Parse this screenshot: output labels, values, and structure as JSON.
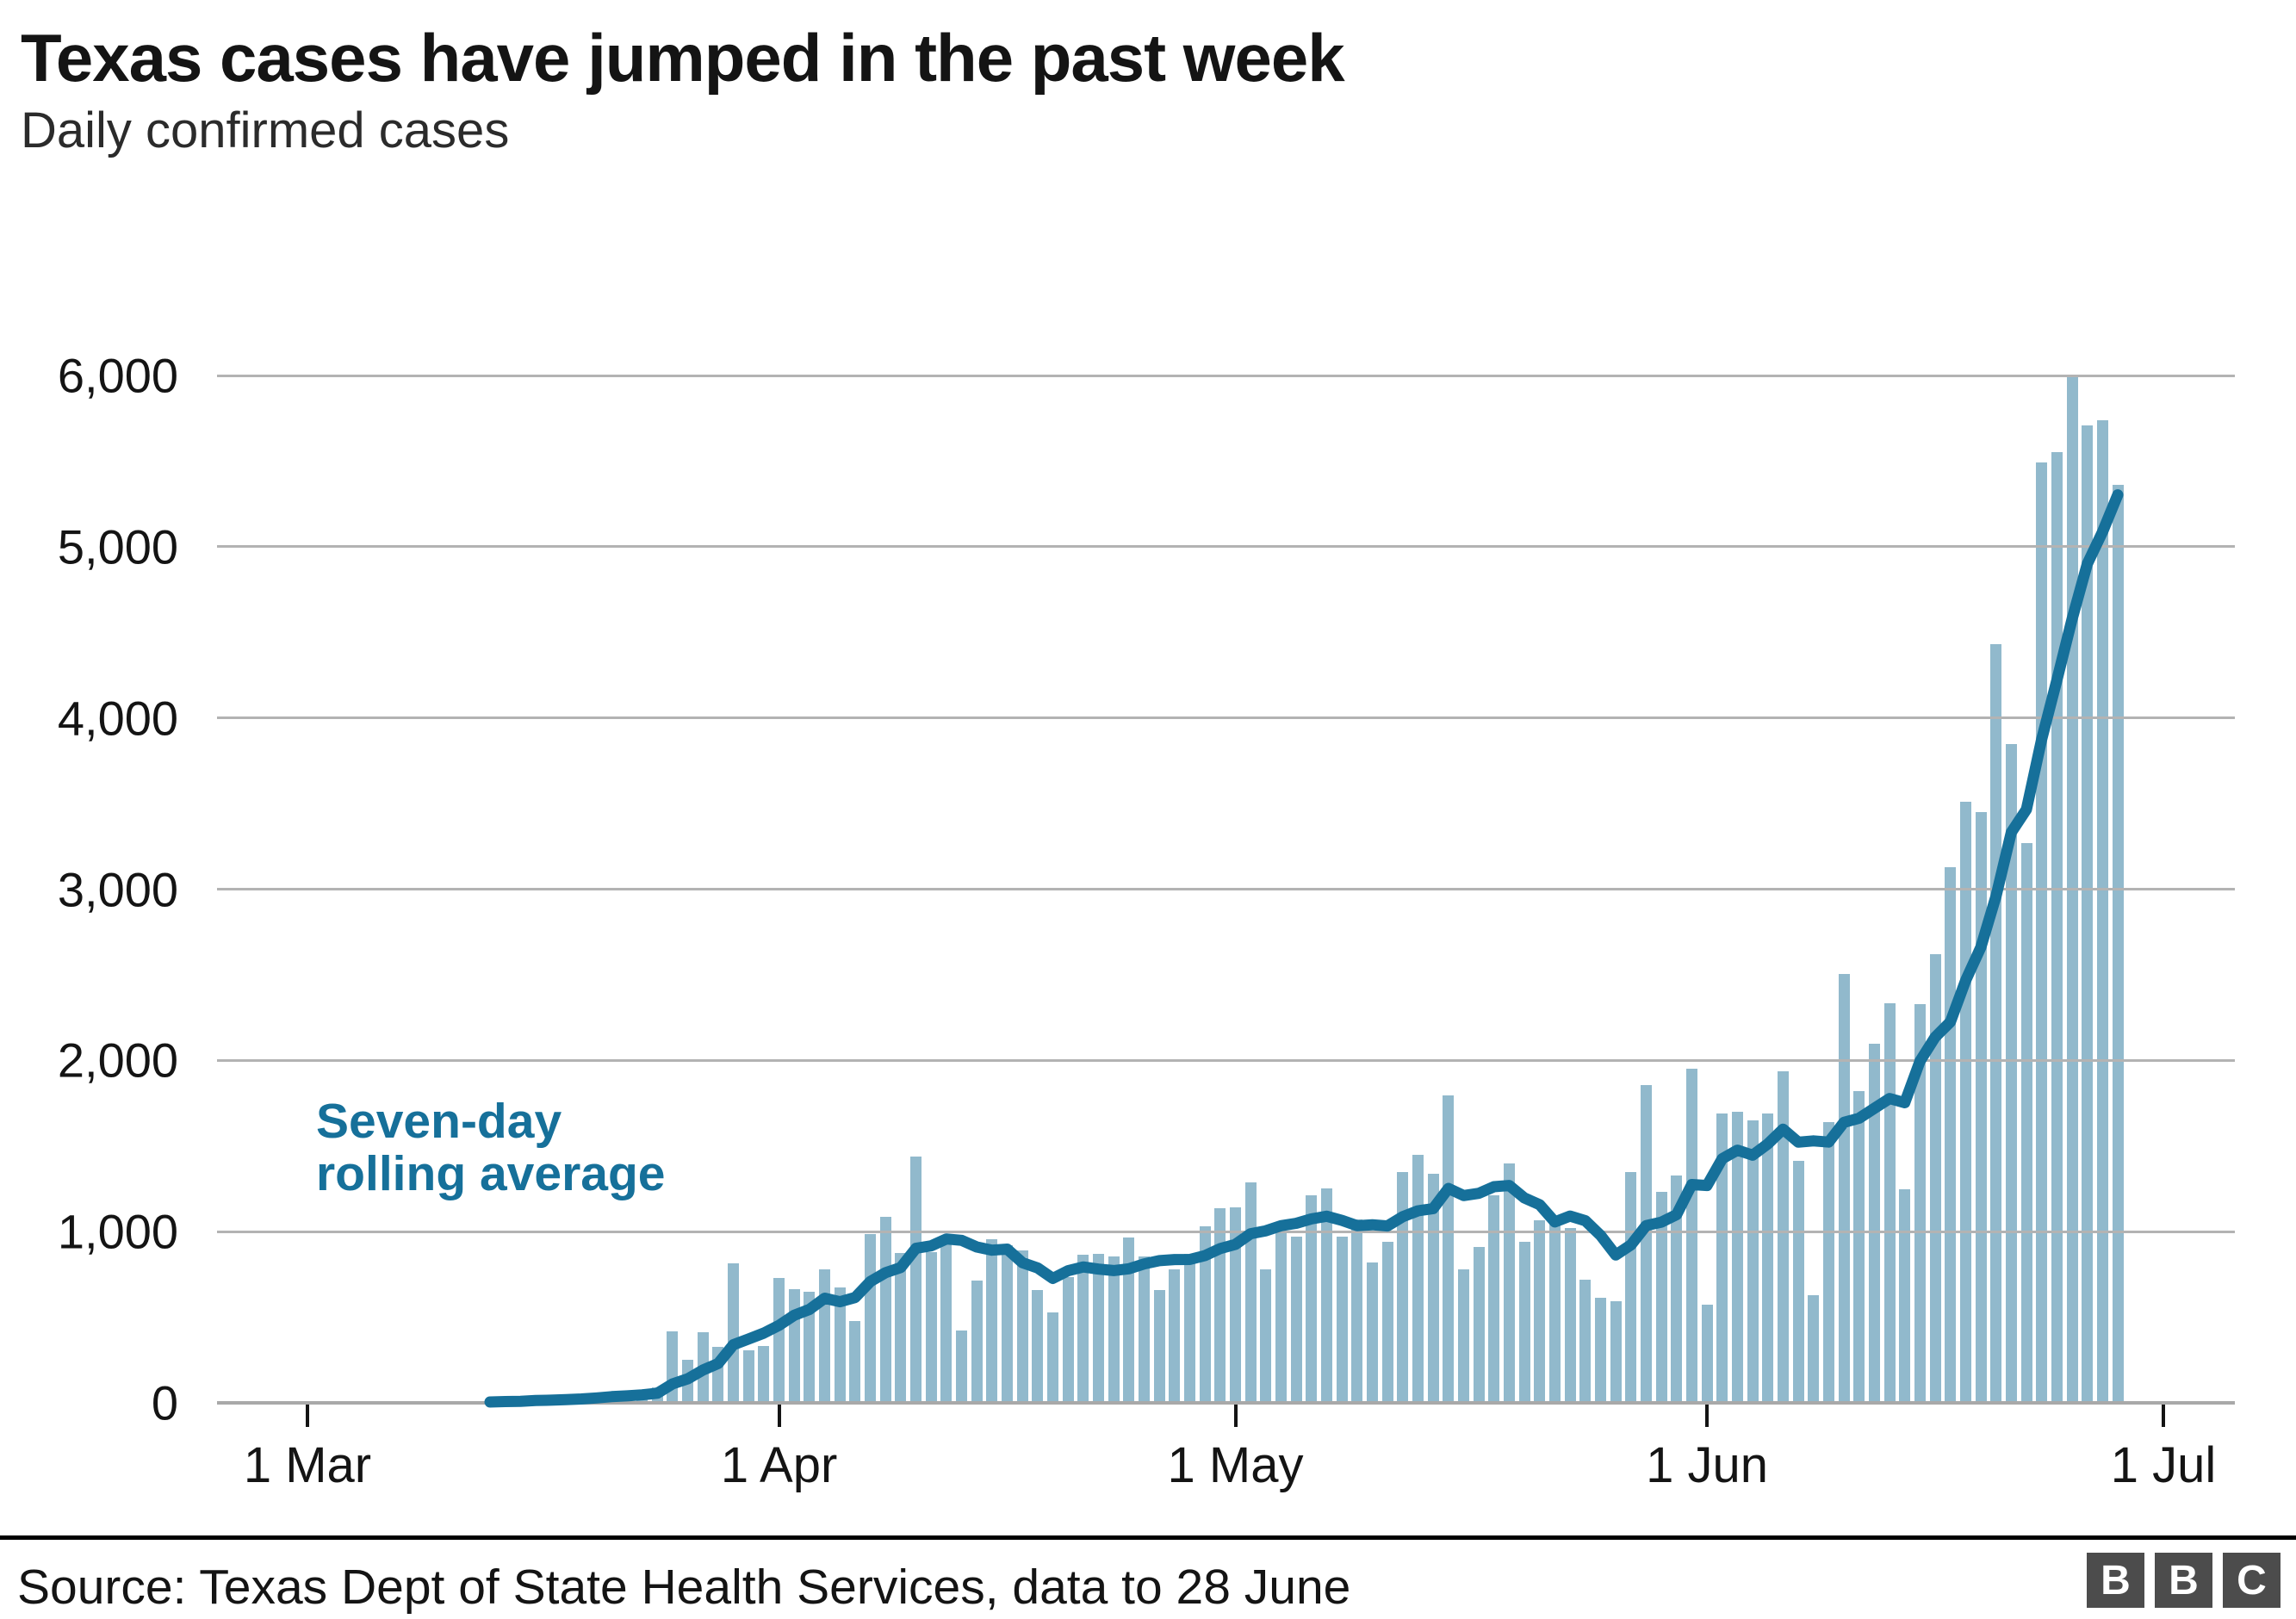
{
  "header": {
    "title": "Texas cases have jumped in the past week",
    "subtitle": "Daily confirmed cases"
  },
  "annotation": {
    "line1": "Seven-day",
    "line2": "rolling average"
  },
  "footer": {
    "source": "Source: Texas Dept of State Health Services, data to 28 June",
    "logo_letters": [
      "B",
      "B",
      "C"
    ]
  },
  "colors": {
    "bar": "#91b9cc",
    "line": "#16709a",
    "grid": "#b3b3b3",
    "axis": "#a9a9a9",
    "text": "#141414",
    "logo_bg": "#4c4c4c"
  },
  "chart_data": {
    "type": "bar",
    "title": "Texas cases have jumped in the past week",
    "subtitle": "Daily confirmed cases",
    "xlabel": "",
    "ylabel": "",
    "ylim": [
      0,
      6000
    ],
    "grid": "horizontal",
    "legend": "inline annotation only",
    "y_ticks": [
      {
        "label": "0",
        "value": 0
      },
      {
        "label": "1,000",
        "value": 1000
      },
      {
        "label": "2,000",
        "value": 2000
      },
      {
        "label": "3,000",
        "value": 3000
      },
      {
        "label": "4,000",
        "value": 4000
      },
      {
        "label": "5,000",
        "value": 5000
      },
      {
        "label": "6,000",
        "value": 6000
      }
    ],
    "x_ticks": [
      {
        "label": "1 Mar",
        "day_offset": 0
      },
      {
        "label": "1 Apr",
        "day_offset": 31
      },
      {
        "label": "1 May",
        "day_offset": 61
      },
      {
        "label": "1 Jun",
        "day_offset": 92
      },
      {
        "label": "1 Jul",
        "day_offset": 122
      }
    ],
    "start_day_offset": 12,
    "series": [
      {
        "name": "Daily confirmed cases",
        "type": "bar"
      },
      {
        "name": "Seven-day rolling average",
        "type": "line",
        "derivation": "trailing 7-day mean of daily values"
      }
    ],
    "categories": [
      "13 Mar",
      "14 Mar",
      "15 Mar",
      "16 Mar",
      "17 Mar",
      "18 Mar",
      "19 Mar",
      "20 Mar",
      "21 Mar",
      "22 Mar",
      "23 Mar",
      "24 Mar",
      "25 Mar",
      "26 Mar",
      "27 Mar",
      "28 Mar",
      "29 Mar",
      "30 Mar",
      "31 Mar",
      "1 Apr",
      "2 Apr",
      "3 Apr",
      "4 Apr",
      "5 Apr",
      "6 Apr",
      "7 Apr",
      "8 Apr",
      "9 Apr",
      "10 Apr",
      "11 Apr",
      "12 Apr",
      "13 Apr",
      "14 Apr",
      "15 Apr",
      "16 Apr",
      "17 Apr",
      "18 Apr",
      "19 Apr",
      "20 Apr",
      "21 Apr",
      "22 Apr",
      "23 Apr",
      "24 Apr",
      "25 Apr",
      "26 Apr",
      "27 Apr",
      "28 Apr",
      "29 Apr",
      "30 Apr",
      "1 May",
      "2 May",
      "3 May",
      "4 May",
      "5 May",
      "6 May",
      "7 May",
      "8 May",
      "9 May",
      "10 May",
      "11 May",
      "12 May",
      "13 May",
      "14 May",
      "15 May",
      "16 May",
      "17 May",
      "18 May",
      "19 May",
      "20 May",
      "21 May",
      "22 May",
      "23 May",
      "24 May",
      "25 May",
      "26 May",
      "27 May",
      "28 May",
      "29 May",
      "30 May",
      "31 May",
      "1 Jun",
      "2 Jun",
      "3 Jun",
      "4 Jun",
      "5 Jun",
      "6 Jun",
      "7 Jun",
      "8 Jun",
      "9 Jun",
      "10 Jun",
      "11 Jun",
      "12 Jun",
      "13 Jun",
      "14 Jun",
      "15 Jun",
      "16 Jun",
      "17 Jun",
      "18 Jun",
      "19 Jun",
      "20 Jun",
      "21 Jun",
      "22 Jun",
      "23 Jun",
      "24 Jun",
      "25 Jun",
      "26 Jun",
      "27 Jun",
      "28 Jun"
    ],
    "values": [
      5,
      10,
      12,
      30,
      20,
      35,
      45,
      50,
      60,
      46,
      70,
      90,
      415,
      251,
      410,
      327,
      815,
      305,
      330,
      730,
      663,
      651,
      782,
      672,
      476,
      986,
      1088,
      876,
      1439,
      881,
      952,
      422,
      714,
      957,
      918,
      889,
      660,
      527,
      736,
      867,
      872,
      855,
      966,
      855,
      660,
      782,
      872,
      1031,
      1139,
      1140,
      1290,
      780,
      990,
      970,
      1210,
      1250,
      970,
      1070,
      820,
      940,
      1350,
      1450,
      1340,
      1795,
      780,
      910,
      1210,
      1400,
      940,
      1065,
      1090,
      1020,
      720,
      615,
      595,
      1350,
      1855,
      1230,
      1330,
      1950,
      575,
      1690,
      1700,
      1650,
      1690,
      1935,
      1415,
      630,
      1640,
      2505,
      1820,
      2095,
      2335,
      1245,
      2330,
      2620,
      3130,
      3510,
      3450,
      4430,
      3850,
      3270,
      5490,
      5550,
      6000,
      5710,
      5740,
      5360
    ]
  }
}
